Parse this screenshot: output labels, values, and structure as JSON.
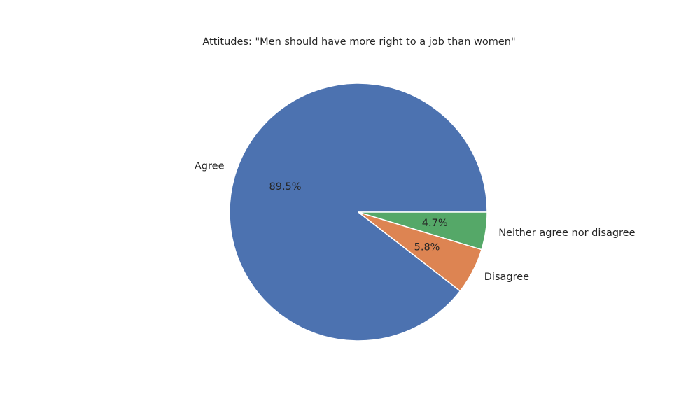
{
  "chart_data": {
    "type": "pie",
    "title": "Attitudes: \"Men should have more right to a job than women\"",
    "categories": [
      "Agree",
      "Disagree",
      "Neither agree nor disagree"
    ],
    "values": [
      89.5,
      5.8,
      4.7
    ],
    "percent_labels": [
      "89.5%",
      "5.8%",
      "4.7%"
    ],
    "colors": [
      "#4c72b0",
      "#dd8452",
      "#55a868"
    ],
    "start_angle_deg": 0,
    "direction": "counterclockwise",
    "legend": "none"
  }
}
